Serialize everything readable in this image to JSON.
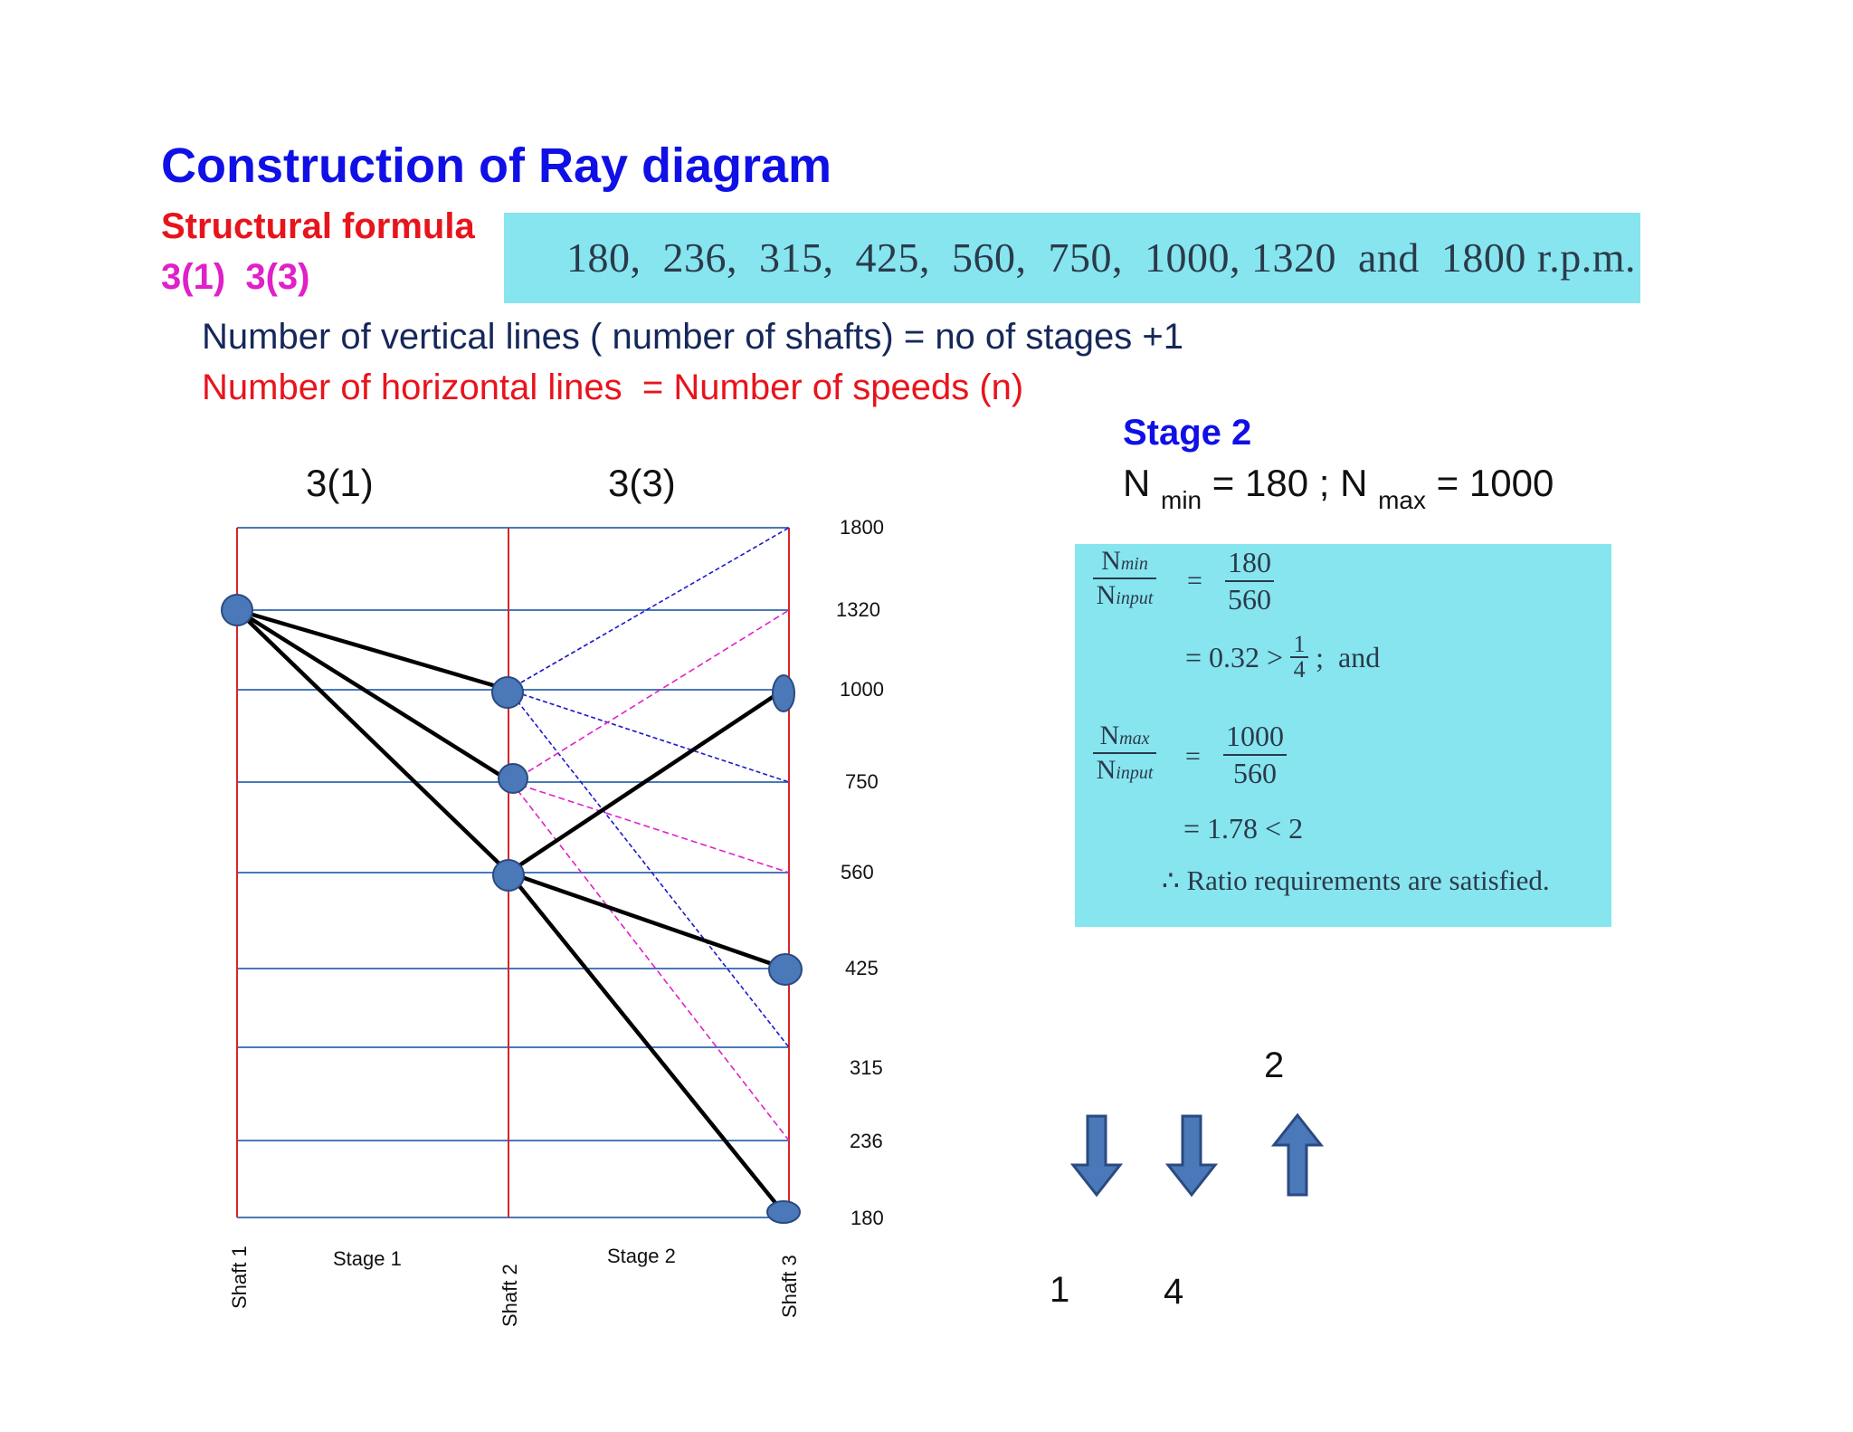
{
  "title": "Construction of Ray diagram",
  "structural_formula": {
    "label": "Structural formula",
    "value": "3(1)  3(3)"
  },
  "speeds_line": "180,  236,  315,  425,  560,  750,  1000, 1320  and  1800 r.p.m.",
  "rules": {
    "vertical": "Number of vertical lines ( number of shafts) = no of stages +1",
    "horizontal": "Number of horizontal lines  = Number of speeds (n)"
  },
  "stage2": {
    "title": "Stage 2",
    "n_prefix": "N",
    "n_min_sub": "min",
    "n_min_val": " = 180 ; N",
    "n_max_sub": "max",
    "n_max_val": " = 1000"
  },
  "stage_headers": [
    "3(1)",
    "3(3)"
  ],
  "ray_diagram": {
    "speeds": [
      "1800",
      "1320",
      "1000",
      "750",
      "560",
      "425",
      "315",
      "236",
      "180"
    ],
    "shafts": [
      "Shaft 1",
      "Shaft 2",
      "Shaft 3"
    ],
    "stages": [
      "Stage 1",
      "Stage 2"
    ],
    "colors": {
      "grid_h": "#4a78b8",
      "grid_v": "#d8242a",
      "ray": "#000000",
      "dash_blue": "#1a1acc",
      "dash_pink": "#e020c8",
      "node": "#4a78b8"
    }
  },
  "ratio_calc": {
    "nmin": "N",
    "nmin_sub": "min",
    "ninput": "N",
    "ninput_sub": "input",
    "eq": "=",
    "num1": "180",
    "den1": "560",
    "line2": "= 0.32 >",
    "frac_num": "1",
    "frac_den": "4",
    "line2_end": ";  and",
    "nmax": "N",
    "nmax_sub": "max",
    "num2": "1000",
    "den2": "560",
    "line4": "= 1.78 < 2",
    "conclusion": "∴ Ratio requirements are satisfied."
  },
  "arrows": {
    "items": [
      {
        "direction": "down",
        "label": "1"
      },
      {
        "direction": "down",
        "label": "4"
      },
      {
        "direction": "up",
        "label": "2"
      }
    ],
    "color": "#4a78b8"
  }
}
